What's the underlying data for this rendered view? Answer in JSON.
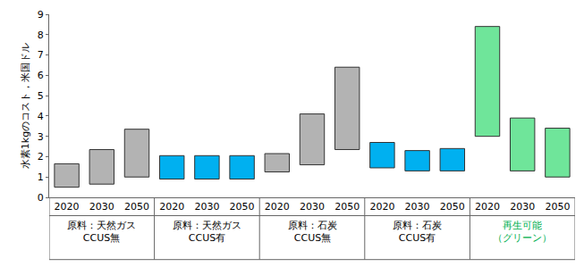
{
  "chart_data": {
    "type": "floating_bar",
    "ylabel": "水素1kgのコスト，米国ドル",
    "ylim": [
      0,
      9
    ],
    "yticks": [
      0,
      1,
      2,
      3,
      4,
      5,
      6,
      7,
      8,
      9
    ],
    "grid": false,
    "groups": [
      {
        "label": [
          "原料：天然ガス",
          "CCUS無"
        ],
        "label_color": "#000000",
        "color": "#b3b3b3",
        "categories": [
          "2020",
          "2030",
          "2050"
        ],
        "low": [
          0.5,
          0.65,
          1.0
        ],
        "high": [
          1.65,
          2.35,
          3.35
        ]
      },
      {
        "label": [
          "原料：天然ガス",
          "CCUS有"
        ],
        "label_color": "#000000",
        "color": "#00b0f0",
        "categories": [
          "2020",
          "2030",
          "2050"
        ],
        "low": [
          0.9,
          0.9,
          0.9
        ],
        "high": [
          2.05,
          2.05,
          2.05
        ]
      },
      {
        "label": [
          "原料：石炭",
          "CCUS無"
        ],
        "label_color": "#000000",
        "color": "#b3b3b3",
        "categories": [
          "2020",
          "2030",
          "2050"
        ],
        "low": [
          1.25,
          1.6,
          2.35
        ],
        "high": [
          2.15,
          4.1,
          6.4
        ]
      },
      {
        "label": [
          "原料：石炭",
          "CCUS有"
        ],
        "label_color": "#000000",
        "color": "#00b0f0",
        "categories": [
          "2020",
          "2030",
          "2050"
        ],
        "low": [
          1.45,
          1.3,
          1.3
        ],
        "high": [
          2.7,
          2.3,
          2.4
        ]
      },
      {
        "label": [
          "再生可能",
          "（グリーン）"
        ],
        "label_color": "#00b050",
        "color": "#6fe59a",
        "categories": [
          "2020",
          "2030",
          "2050"
        ],
        "low": [
          3.0,
          1.3,
          1.0
        ],
        "high": [
          8.4,
          3.9,
          3.4
        ]
      }
    ]
  }
}
